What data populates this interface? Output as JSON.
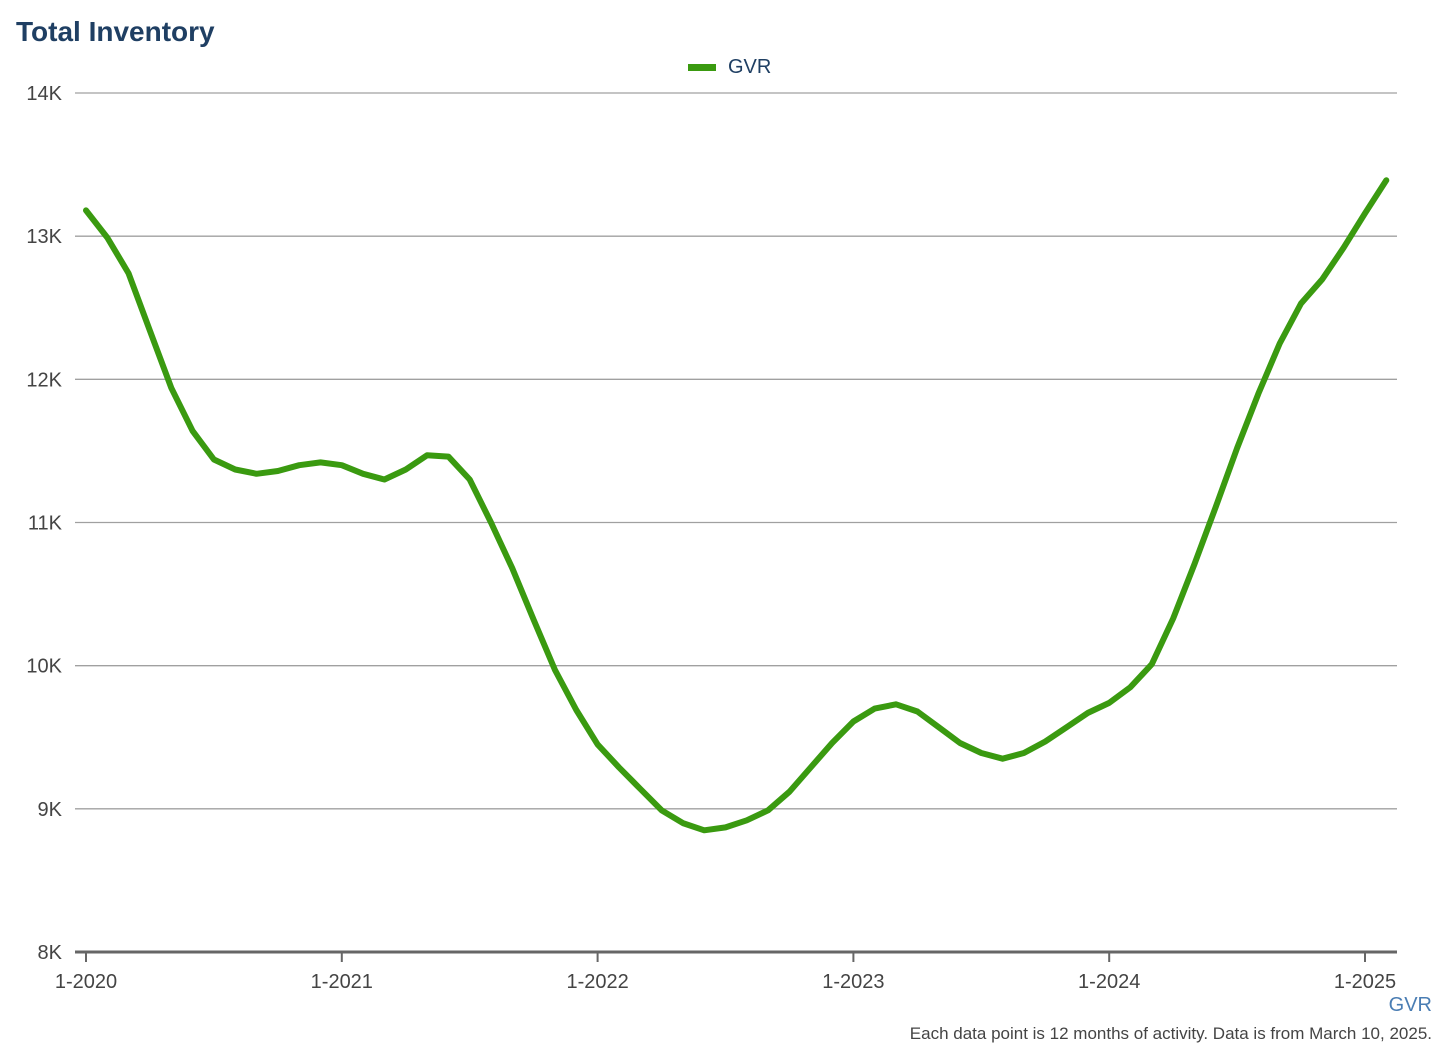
{
  "chart_data": {
    "type": "line",
    "title": "Total Inventory",
    "xlabel": "",
    "ylabel": "",
    "x_tick_labels": [
      "1-2020",
      "1-2021",
      "1-2022",
      "1-2023",
      "1-2024",
      "1-2025"
    ],
    "y_tick_values": [
      8000,
      9000,
      10000,
      11000,
      12000,
      13000,
      14000
    ],
    "y_tick_labels": [
      "8K",
      "9K",
      "10K",
      "11K",
      "12K",
      "13K",
      "14K"
    ],
    "ylim": [
      8000,
      14000
    ],
    "xlim": [
      "2020-01",
      "2025-02"
    ],
    "grid": "horizontal",
    "legend_position": "top-center",
    "x": [
      "2020-01",
      "2020-02",
      "2020-03",
      "2020-04",
      "2020-05",
      "2020-06",
      "2020-07",
      "2020-08",
      "2020-09",
      "2020-10",
      "2020-11",
      "2020-12",
      "2021-01",
      "2021-02",
      "2021-03",
      "2021-04",
      "2021-05",
      "2021-06",
      "2021-07",
      "2021-08",
      "2021-09",
      "2021-10",
      "2021-11",
      "2021-12",
      "2022-01",
      "2022-02",
      "2022-03",
      "2022-04",
      "2022-05",
      "2022-06",
      "2022-07",
      "2022-08",
      "2022-09",
      "2022-10",
      "2022-11",
      "2022-12",
      "2023-01",
      "2023-02",
      "2023-03",
      "2023-04",
      "2023-05",
      "2023-06",
      "2023-07",
      "2023-08",
      "2023-09",
      "2023-10",
      "2023-11",
      "2023-12",
      "2024-01",
      "2024-02",
      "2024-03",
      "2024-04",
      "2024-05",
      "2024-06",
      "2024-07",
      "2024-08",
      "2024-09",
      "2024-10",
      "2024-11",
      "2024-12",
      "2025-01",
      "2025-02"
    ],
    "series": [
      {
        "name": "GVR",
        "color": "#3a9a10",
        "values": [
          13180,
          12990,
          12740,
          12340,
          11940,
          11640,
          11440,
          11370,
          11340,
          11360,
          11400,
          11420,
          11400,
          11340,
          11300,
          11370,
          11470,
          11460,
          11300,
          11000,
          10680,
          10320,
          9970,
          9690,
          9450,
          9290,
          9140,
          8990,
          8900,
          8850,
          8870,
          8920,
          8990,
          9120,
          9290,
          9460,
          9610,
          9700,
          9730,
          9680,
          9570,
          9460,
          9390,
          9350,
          9390,
          9470,
          9570,
          9670,
          9740,
          9850,
          10010,
          10330,
          10710,
          11110,
          11520,
          11900,
          12250,
          12530,
          12700,
          12920,
          13160,
          13390
        ]
      }
    ]
  },
  "source_label": "GVR",
  "footnote": "Each data point is 12 months of activity. Data is from March 10, 2025."
}
